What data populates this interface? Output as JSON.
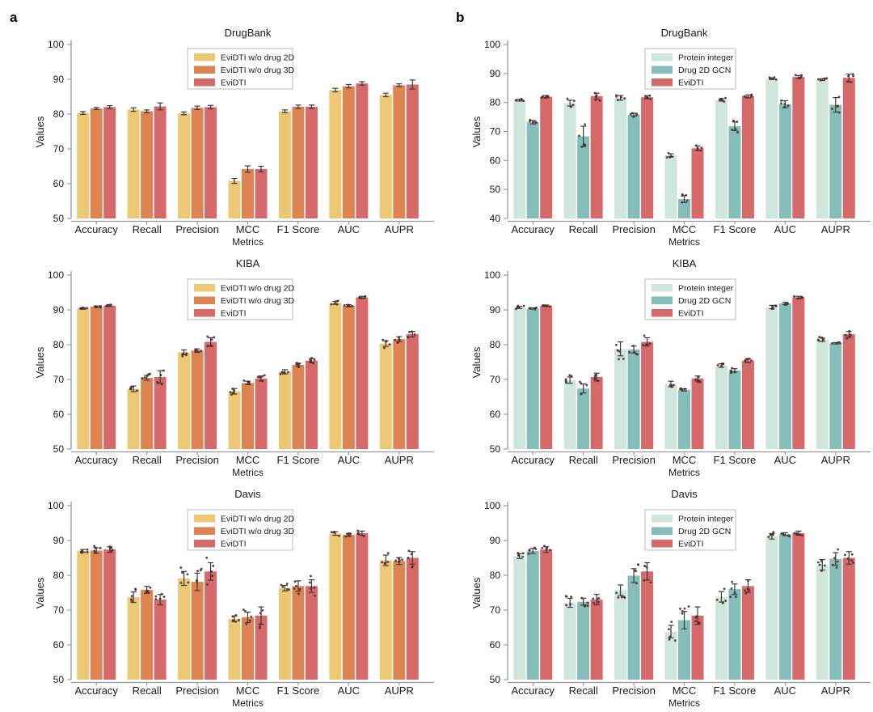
{
  "panels": [
    {
      "label": "a"
    },
    {
      "label": "b"
    }
  ],
  "colors": {
    "palette_a": [
      "#ecc874",
      "#dd8452",
      "#d66a6a"
    ],
    "palette_b": [
      "#cfe6dc",
      "#85bdb9",
      "#d66a6a"
    ],
    "error_bar": "#3a3a3a",
    "point": "#4a2b2b",
    "axis": "#999999"
  },
  "chart_data": [
    {
      "panel": "a",
      "type": "bar",
      "title": "DrugBank",
      "xlabel": "Metrics",
      "ylabel": "Values",
      "ylim": [
        50,
        100
      ],
      "yticks": [
        50,
        60,
        70,
        80,
        90,
        100
      ],
      "grid": false,
      "legend_position": "upper center",
      "show_points": false,
      "categories": [
        "Accuracy",
        "Recall",
        "Precision",
        "MCC",
        "F1 Score",
        "AUC",
        "AUPR"
      ],
      "series": [
        {
          "name": "EviDTI w/o drug 2D",
          "color": "#ecc874",
          "values": [
            80.3,
            81.3,
            80.2,
            60.8,
            80.8,
            86.9,
            85.5
          ],
          "errors": [
            0.4,
            0.5,
            0.4,
            0.7,
            0.4,
            0.5,
            0.5
          ]
        },
        {
          "name": "EviDTI w/o drug 3D",
          "color": "#dd8452",
          "values": [
            81.6,
            80.8,
            81.8,
            64.2,
            82.1,
            88.0,
            88.3
          ],
          "errors": [
            0.3,
            0.4,
            0.5,
            0.9,
            0.5,
            0.5,
            0.4
          ]
        },
        {
          "name": "EviDTI",
          "color": "#d66a6a",
          "values": [
            82.0,
            82.2,
            82.0,
            64.2,
            82.1,
            88.8,
            88.5
          ],
          "errors": [
            0.4,
            1.0,
            0.5,
            0.8,
            0.5,
            0.5,
            1.3
          ]
        }
      ]
    },
    {
      "panel": "a",
      "type": "bar",
      "title": "KIBA",
      "xlabel": "Metrics",
      "ylabel": "Values",
      "ylim": [
        50,
        100
      ],
      "yticks": [
        50,
        60,
        70,
        80,
        90,
        100
      ],
      "grid": false,
      "legend_position": "upper center",
      "show_points": true,
      "categories": [
        "Accuracy",
        "Recall",
        "Precision",
        "MCC",
        "F1 Score",
        "AUC",
        "AUPR"
      ],
      "series": [
        {
          "name": "EviDTI w/o drug 2D",
          "color": "#ecc874",
          "values": [
            90.4,
            67.3,
            77.8,
            66.6,
            72.2,
            92.0,
            80.3
          ],
          "errors": [
            0.2,
            0.8,
            0.7,
            0.8,
            0.6,
            0.4,
            0.8
          ]
        },
        {
          "name": "EviDTI w/o drug 3D",
          "color": "#dd8452",
          "values": [
            90.9,
            70.5,
            78.3,
            69.0,
            74.2,
            91.2,
            81.6
          ],
          "errors": [
            0.2,
            0.7,
            0.5,
            0.5,
            0.5,
            0.3,
            0.7
          ]
        },
        {
          "name": "EviDTI",
          "color": "#d66a6a",
          "values": [
            91.2,
            70.7,
            80.8,
            70.3,
            75.4,
            93.6,
            83.0
          ],
          "errors": [
            0.2,
            1.8,
            1.2,
            0.7,
            0.6,
            0.3,
            0.8
          ]
        }
      ]
    },
    {
      "panel": "a",
      "type": "bar",
      "title": "Davis",
      "xlabel": "Metrics",
      "ylabel": "Values",
      "ylim": [
        50,
        100
      ],
      "yticks": [
        50,
        60,
        70,
        80,
        90,
        100
      ],
      "grid": false,
      "legend_position": "upper center",
      "show_points": true,
      "categories": [
        "Accuracy",
        "Recall",
        "Precision",
        "MCC",
        "F1 Score",
        "AUC",
        "AUPR"
      ],
      "series": [
        {
          "name": "EviDTI w/o drug 2D",
          "color": "#ecc874",
          "values": [
            87.0,
            73.7,
            79.1,
            67.5,
            76.3,
            92.0,
            84.3
          ],
          "errors": [
            0.4,
            1.5,
            2.0,
            0.8,
            0.8,
            0.5,
            1.5
          ]
        },
        {
          "name": "EviDTI w/o drug 3D",
          "color": "#dd8452",
          "values": [
            87.1,
            75.8,
            78.1,
            67.9,
            76.9,
            91.6,
            84.1
          ],
          "errors": [
            0.8,
            1.0,
            2.5,
            1.5,
            1.5,
            0.4,
            1.0
          ]
        },
        {
          "name": "EviDTI",
          "color": "#d66a6a",
          "values": [
            87.4,
            73.0,
            81.1,
            68.4,
            76.9,
            92.1,
            85.0
          ],
          "errors": [
            0.8,
            1.5,
            2.5,
            2.5,
            1.8,
            0.6,
            1.8
          ]
        }
      ]
    },
    {
      "panel": "b",
      "type": "bar",
      "title": "DrugBank",
      "xlabel": "Metrics",
      "ylabel": "Values",
      "ylim": [
        40,
        100
      ],
      "yticks": [
        40,
        50,
        60,
        70,
        80,
        90,
        100
      ],
      "grid": false,
      "legend_position": "upper center",
      "show_points": true,
      "categories": [
        "Accuracy",
        "Recall",
        "Precision",
        "MCC",
        "F1 Score",
        "AUC",
        "AUPR"
      ],
      "series": [
        {
          "name": "Protein integer",
          "color": "#cfe6dc",
          "values": [
            80.8,
            79.8,
            81.6,
            61.8,
            80.9,
            88.2,
            87.9
          ],
          "errors": [
            0.3,
            1.0,
            0.8,
            0.5,
            0.4,
            0.3,
            0.3
          ]
        },
        {
          "name": "Drug 2D GCN",
          "color": "#85bdb9",
          "values": [
            73.2,
            68.3,
            75.8,
            46.7,
            71.8,
            79.4,
            79.2
          ],
          "errors": [
            0.6,
            3.5,
            0.5,
            1.2,
            1.5,
            1.2,
            2.5
          ]
        },
        {
          "name": "EviDTI",
          "color": "#d66a6a",
          "values": [
            82.0,
            82.2,
            81.8,
            64.2,
            82.1,
            88.8,
            88.5
          ],
          "errors": [
            0.4,
            1.0,
            0.5,
            0.8,
            0.5,
            0.5,
            1.3
          ]
        }
      ]
    },
    {
      "panel": "b",
      "type": "bar",
      "title": "KIBA",
      "xlabel": "Metrics",
      "ylabel": "Values",
      "ylim": [
        50,
        100
      ],
      "yticks": [
        50,
        60,
        70,
        80,
        90,
        100
      ],
      "grid": false,
      "legend_position": "upper center",
      "show_points": true,
      "categories": [
        "Accuracy",
        "Recall",
        "Precision",
        "MCC",
        "F1 Score",
        "AUC",
        "AUPR"
      ],
      "series": [
        {
          "name": "Protein integer",
          "color": "#cfe6dc",
          "values": [
            90.7,
            69.8,
            78.8,
            68.7,
            74.0,
            90.8,
            81.4
          ],
          "errors": [
            0.3,
            0.9,
            2.0,
            0.8,
            0.5,
            0.5,
            0.5
          ]
        },
        {
          "name": "Drug 2D GCN",
          "color": "#85bdb9",
          "values": [
            90.4,
            67.4,
            78.6,
            67.0,
            72.6,
            91.9,
            80.4
          ],
          "errors": [
            0.2,
            1.3,
            1.0,
            0.3,
            0.5,
            0.3,
            0.2
          ]
        },
        {
          "name": "EviDTI",
          "color": "#d66a6a",
          "values": [
            91.2,
            70.7,
            80.8,
            70.3,
            75.4,
            93.6,
            83.0
          ],
          "errors": [
            0.2,
            1.1,
            1.2,
            0.7,
            0.6,
            0.3,
            0.8
          ]
        }
      ]
    },
    {
      "panel": "b",
      "type": "bar",
      "title": "Davis",
      "xlabel": "Metrics",
      "ylabel": "Values",
      "ylim": [
        50,
        100
      ],
      "yticks": [
        50,
        60,
        70,
        80,
        90,
        100
      ],
      "grid": false,
      "legend_position": "upper center",
      "show_points": true,
      "categories": [
        "Accuracy",
        "Recall",
        "Precision",
        "MCC",
        "F1 Score",
        "AUC",
        "AUPR"
      ],
      "series": [
        {
          "name": "Protein integer",
          "color": "#cfe6dc",
          "values": [
            85.5,
            72.1,
            75.7,
            63.8,
            73.8,
            91.2,
            83.0
          ],
          "errors": [
            0.7,
            1.3,
            1.5,
            1.8,
            1.5,
            0.8,
            1.5
          ]
        },
        {
          "name": "Drug 2D GCN",
          "color": "#85bdb9",
          "values": [
            87.0,
            72.4,
            79.9,
            67.1,
            76.0,
            91.8,
            84.7
          ],
          "errors": [
            0.7,
            1.0,
            2.0,
            2.5,
            1.5,
            0.4,
            1.8
          ]
        },
        {
          "name": "EviDTI",
          "color": "#d66a6a",
          "values": [
            87.4,
            73.0,
            81.1,
            68.4,
            76.9,
            92.1,
            85.0
          ],
          "errors": [
            0.8,
            1.5,
            2.5,
            2.5,
            1.8,
            0.6,
            1.8
          ]
        }
      ]
    }
  ]
}
